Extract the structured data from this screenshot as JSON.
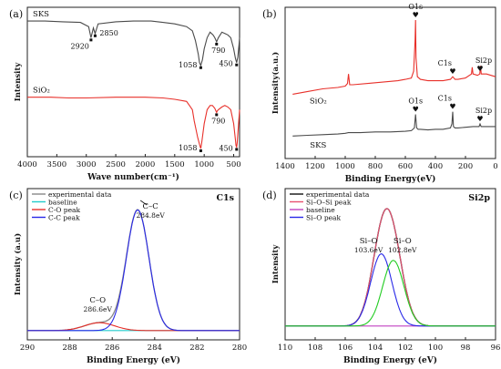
{
  "chart_data": [
    {
      "id": "a",
      "panel_label": "(a)",
      "type": "line",
      "xlabel": "Wave number(cm⁻¹)",
      "ylabel": "Intensity",
      "xlim": [
        4000,
        400
      ],
      "xticks": [
        4000,
        3500,
        3000,
        2500,
        2000,
        1500,
        1000,
        500
      ],
      "yticks_shown": false,
      "series": [
        {
          "name": "SKS",
          "color": "#4a4a4a",
          "offset": 0.62,
          "x": [
            4000,
            3700,
            3400,
            3100,
            2960,
            2920,
            2880,
            2850,
            2800,
            2500,
            2200,
            1900,
            1700,
            1500,
            1300,
            1200,
            1150,
            1100,
            1080,
            1058,
            1030,
            1000,
            950,
            900,
            850,
            820,
            790,
            760,
            700,
            650,
            600,
            550,
            500,
            470,
            450,
            430,
            410,
            400
          ],
          "y": [
            0.32,
            0.32,
            0.315,
            0.31,
            0.28,
            0.2,
            0.27,
            0.23,
            0.3,
            0.315,
            0.32,
            0.32,
            0.31,
            0.3,
            0.28,
            0.25,
            0.18,
            0.08,
            0.02,
            0.0,
            0.04,
            0.12,
            0.2,
            0.24,
            0.22,
            0.2,
            0.17,
            0.2,
            0.24,
            0.23,
            0.22,
            0.2,
            0.12,
            0.05,
            0.02,
            0.06,
            0.15,
            0.2
          ],
          "annotations": [
            {
              "label": "2920",
              "x": 2920
            },
            {
              "label": "2850",
              "x": 2850
            },
            {
              "label": "1058",
              "x": 1058
            },
            {
              "label": "790",
              "x": 790
            },
            {
              "label": "450",
              "x": 450
            }
          ]
        },
        {
          "name": "SiO₂",
          "color": "#e8302a",
          "offset": 0.0,
          "x": [
            4000,
            3600,
            3300,
            3000,
            2500,
            2000,
            1700,
            1500,
            1300,
            1250,
            1200,
            1170,
            1140,
            1110,
            1080,
            1058,
            1040,
            1000,
            950,
            900,
            860,
            820,
            800,
            790,
            780,
            760,
            700,
            650,
            600,
            550,
            500,
            470,
            460,
            450,
            440,
            420,
            400
          ],
          "y": [
            0.39,
            0.39,
            0.385,
            0.385,
            0.39,
            0.39,
            0.385,
            0.375,
            0.36,
            0.33,
            0.3,
            0.22,
            0.16,
            0.1,
            0.05,
            0.02,
            0.07,
            0.2,
            0.3,
            0.33,
            0.33,
            0.31,
            0.29,
            0.28,
            0.29,
            0.3,
            0.32,
            0.33,
            0.32,
            0.3,
            0.2,
            0.08,
            0.04,
            0.03,
            0.06,
            0.18,
            0.3
          ],
          "annotations": [
            {
              "label": "1058",
              "x": 1058
            },
            {
              "label": "790",
              "x": 790
            },
            {
              "label": "450",
              "x": 450
            }
          ]
        }
      ]
    },
    {
      "id": "b",
      "panel_label": "(b)",
      "type": "line",
      "xlabel": "Binding Energy(eV)",
      "ylabel": "Intensity(a.u.)",
      "xlim": [
        1400,
        0
      ],
      "xticks": [
        1400,
        1200,
        1000,
        800,
        600,
        400,
        200,
        0
      ],
      "yticks_shown": false,
      "series": [
        {
          "name": "SiO₂",
          "color": "#e8302a",
          "x": [
            1350,
            1250,
            1150,
            1050,
            1000,
            985,
            978,
            970,
            950,
            850,
            750,
            650,
            600,
            560,
            545,
            535,
            532,
            529,
            520,
            500,
            450,
            400,
            350,
            300,
            285,
            270,
            250,
            200,
            160,
            155,
            150,
            120,
            105,
            100,
            95,
            60,
            30,
            0
          ],
          "y": [
            0.45,
            0.47,
            0.49,
            0.5,
            0.51,
            0.53,
            0.6,
            0.52,
            0.52,
            0.53,
            0.54,
            0.55,
            0.56,
            0.57,
            0.62,
            0.85,
            1.0,
            0.72,
            0.58,
            0.56,
            0.55,
            0.55,
            0.55,
            0.56,
            0.58,
            0.56,
            0.56,
            0.57,
            0.6,
            0.65,
            0.6,
            0.59,
            0.6,
            0.66,
            0.6,
            0.6,
            0.59,
            0.58
          ],
          "annotations": [
            {
              "label": "O1s",
              "x": 532
            },
            {
              "label": "C1s",
              "x": 285
            },
            {
              "label": "Si2p",
              "x": 103
            }
          ]
        },
        {
          "name": "SKS",
          "color": "#4a4a4a",
          "x": [
            1350,
            1250,
            1150,
            1050,
            1000,
            980,
            900,
            800,
            700,
            600,
            560,
            540,
            532,
            525,
            515,
            500,
            450,
            400,
            350,
            300,
            290,
            285,
            280,
            270,
            250,
            200,
            150,
            110,
            103,
            96,
            80,
            40,
            0
          ],
          "y": [
            0.14,
            0.145,
            0.15,
            0.155,
            0.16,
            0.165,
            0.165,
            0.17,
            0.17,
            0.175,
            0.18,
            0.2,
            0.3,
            0.2,
            0.19,
            0.19,
            0.185,
            0.19,
            0.19,
            0.2,
            0.23,
            0.32,
            0.21,
            0.2,
            0.2,
            0.205,
            0.21,
            0.21,
            0.23,
            0.21,
            0.21,
            0.21,
            0.21
          ],
          "annotations": [
            {
              "label": "O1s",
              "x": 532
            },
            {
              "label": "C1s",
              "x": 285
            },
            {
              "label": "Si2p",
              "x": 103
            }
          ]
        }
      ]
    },
    {
      "id": "c",
      "panel_label": "(c)",
      "title": "C1s",
      "type": "line",
      "xlabel": "Binding Energy (eV)",
      "ylabel": "Intensity (a.u)",
      "xlim": [
        290,
        280
      ],
      "xticks": [
        290,
        288,
        286,
        284,
        282,
        280
      ],
      "yticks_shown": false,
      "legend": "top-left",
      "series": [
        {
          "name": "experimental data",
          "color": "#888888",
          "kind": "sum",
          "x_center": 284.8,
          "height": 0.92,
          "width": 0.75,
          "x2": 286.6,
          "height2": 0.06,
          "width2": 1.0,
          "base": 0.015
        },
        {
          "name": "baseline",
          "color": "#22cccc",
          "kind": "baseline",
          "y_start": 0.015,
          "y_end": 0.015
        },
        {
          "name": "C-O peak",
          "color": "#e8302a",
          "kind": "gauss",
          "x_center": 286.6,
          "height": 0.06,
          "width": 1.0,
          "base": 0.015
        },
        {
          "name": "C-C peak",
          "color": "#2a2ae8",
          "kind": "gauss",
          "x_center": 284.8,
          "height": 0.92,
          "width": 0.75,
          "base": 0.015
        }
      ],
      "annotations": [
        {
          "label": "C–C",
          "sub": "284.8eV",
          "x": 284.8
        },
        {
          "label": "C–O",
          "sub": "286.6eV",
          "x": 286.6
        }
      ]
    },
    {
      "id": "d",
      "panel_label": "(d)",
      "title": "Si2p",
      "type": "line",
      "xlabel": "Binding Energy (eV)",
      "ylabel": "Intensity",
      "xlim": [
        110,
        96
      ],
      "xticks": [
        110,
        108,
        106,
        104,
        102,
        100,
        98,
        96
      ],
      "yticks_shown": false,
      "legend": "top-left",
      "series": [
        {
          "name": "experimental data",
          "color": "#111111",
          "kind": "sum",
          "x_center": 103.6,
          "height": 0.55,
          "width": 1.0,
          "x2": 102.8,
          "height2": 0.5,
          "width2": 1.0,
          "base": 0.05
        },
        {
          "name": "Si–O–Si peak",
          "color": "#e85070",
          "kind": "sum_fit",
          "x_center": 103.6,
          "height": 0.55,
          "width": 1.0,
          "x2": 102.8,
          "height2": 0.5,
          "width2": 1.0,
          "base": 0.05
        },
        {
          "name": "baseline",
          "color": "#c040c0",
          "kind": "baseline",
          "y_start": 0.05,
          "y_end": 0.05
        },
        {
          "name": "Si–O peak",
          "color": "#2a2ae8",
          "kind": "gauss",
          "x_center": 103.6,
          "height": 0.55,
          "width": 1.0,
          "base": 0.05
        },
        {
          "name": "",
          "color": "#22cc22",
          "kind": "gauss",
          "x_center": 102.8,
          "height": 0.5,
          "width": 1.0,
          "base": 0.05
        }
      ],
      "annotations": [
        {
          "label": "Si–O",
          "sub": "103.6eV",
          "x": 103.6
        },
        {
          "label": "Si–O",
          "sub": "102.8eV",
          "x": 102.8
        }
      ]
    }
  ]
}
